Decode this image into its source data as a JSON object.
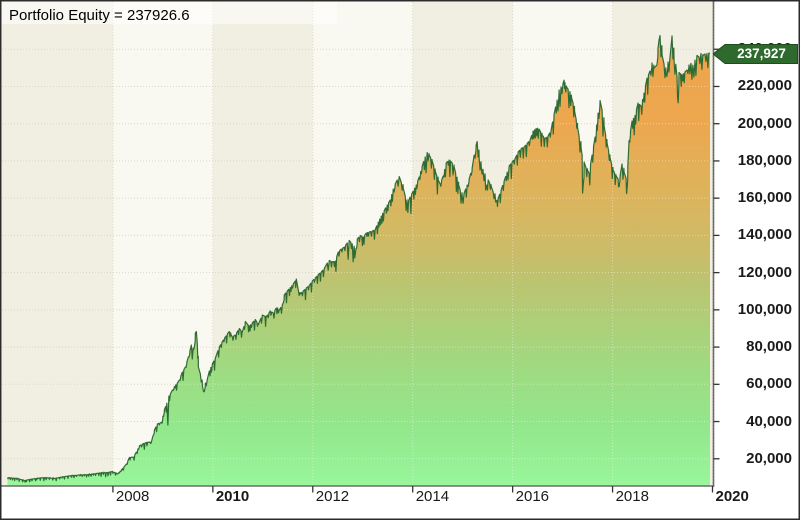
{
  "chart_data": {
    "type": "area",
    "title": "Portfolio Equity = 237926.6",
    "series_name": "Portfolio Equity",
    "last_value": 237926.6,
    "last_value_label": "237,927",
    "x_range": [
      2005.78,
      2020.02
    ],
    "y_range": [
      5372,
      265380
    ],
    "x_ticks": [
      {
        "label": "2008",
        "year": 2008,
        "bold": false
      },
      {
        "label": "2010",
        "year": 2010,
        "bold": true
      },
      {
        "label": "2012",
        "year": 2012,
        "bold": false
      },
      {
        "label": "2014",
        "year": 2014,
        "bold": false
      },
      {
        "label": "2016",
        "year": 2016,
        "bold": false
      },
      {
        "label": "2018",
        "year": 2018,
        "bold": false
      },
      {
        "label": "2020",
        "year": 2020,
        "bold": true
      }
    ],
    "y_ticks": [
      {
        "label": "20,000",
        "value": 20000
      },
      {
        "label": "40,000",
        "value": 40000
      },
      {
        "label": "60,000",
        "value": 60000
      },
      {
        "label": "80,000",
        "value": 80000
      },
      {
        "label": "100,000",
        "value": 100000
      },
      {
        "label": "120,000",
        "value": 120000
      },
      {
        "label": "140,000",
        "value": 140000
      },
      {
        "label": "160,000",
        "value": 160000
      },
      {
        "label": "180,000",
        "value": 180000
      },
      {
        "label": "200,000",
        "value": 200000
      },
      {
        "label": "220,000",
        "value": 220000
      },
      {
        "label": "240,000",
        "value": 240000
      }
    ],
    "grid": {
      "h_step": 20000,
      "v_step_years": 2,
      "style": "dotted"
    },
    "bands": {
      "interval_years": 2,
      "beige_spans": [
        [
          2005.78,
          2008
        ],
        [
          2010,
          2012
        ],
        [
          2014,
          2016
        ],
        [
          2018,
          2020.02
        ]
      ]
    },
    "colors": {
      "line": "#2f6b33",
      "band_beige": "#f0efe2",
      "band_white": "#faf9f1",
      "grid_bg": "#dbd8c7",
      "grid_overlay": "rgba(255,255,255,0.42)",
      "tag_bg": "#2e6a2e",
      "tag_text": "#ffffff",
      "plot_border": "#6b6b6b",
      "outer_border": "#2b2b2b",
      "axis_text": "#1a1a1a",
      "fill_stops": [
        [
          0,
          "#f0a54c"
        ],
        [
          0.25,
          "#eca74f"
        ],
        [
          0.35,
          "#e2b058"
        ],
        [
          0.44,
          "#d7b761"
        ],
        [
          0.52,
          "#cabc69"
        ],
        [
          0.58,
          "#bcc470"
        ],
        [
          0.68,
          "#abd17a"
        ],
        [
          0.78,
          "#9cdd83"
        ],
        [
          0.88,
          "#93e78c"
        ],
        [
          1,
          "#99f69b"
        ]
      ]
    },
    "points": [
      [
        2005.89,
        9900
      ],
      [
        2006.09,
        9400
      ],
      [
        2006.23,
        8300
      ],
      [
        2006.37,
        9100
      ],
      [
        2006.63,
        9900
      ],
      [
        2006.83,
        9400
      ],
      [
        2007.09,
        10700
      ],
      [
        2007.33,
        11300
      ],
      [
        2007.53,
        11500
      ],
      [
        2007.73,
        12350
      ],
      [
        2007.89,
        12600
      ],
      [
        2007.99,
        13150
      ],
      [
        2008.09,
        11800
      ],
      [
        2008.17,
        14000
      ],
      [
        2008.27,
        17200
      ],
      [
        2008.33,
        20700
      ],
      [
        2008.41,
        20900
      ],
      [
        2008.47,
        23600
      ],
      [
        2008.53,
        26900
      ],
      [
        2008.59,
        27900
      ],
      [
        2008.67,
        28750
      ],
      [
        2008.77,
        29000
      ],
      [
        2008.83,
        35450
      ],
      [
        2008.89,
        38700
      ],
      [
        2008.97,
        39500
      ],
      [
        2009.03,
        46200
      ],
      [
        2009.08,
        49900
      ],
      [
        2009.1,
        38100
      ],
      [
        2009.12,
        53700
      ],
      [
        2009.15,
        54800
      ],
      [
        2009.19,
        56900
      ],
      [
        2009.23,
        58800
      ],
      [
        2009.29,
        60700
      ],
      [
        2009.33,
        62300
      ],
      [
        2009.39,
        66600
      ],
      [
        2009.45,
        69300
      ],
      [
        2009.51,
        74700
      ],
      [
        2009.57,
        81100
      ],
      [
        2009.61,
        78400
      ],
      [
        2009.65,
        87550
      ],
      [
        2009.67,
        88350
      ],
      [
        2009.69,
        81100
      ],
      [
        2009.71,
        69300
      ],
      [
        2009.75,
        65500
      ],
      [
        2009.79,
        59600
      ],
      [
        2009.81,
        56400
      ],
      [
        2009.85,
        60700
      ],
      [
        2009.89,
        62850
      ],
      [
        2009.93,
        67150
      ],
      [
        2009.99,
        70900
      ],
      [
        2010.05,
        74100
      ],
      [
        2010.13,
        80000
      ],
      [
        2010.21,
        83800
      ],
      [
        2010.29,
        87000
      ],
      [
        2010.33,
        88350
      ],
      [
        2010.39,
        85400
      ],
      [
        2010.45,
        86500
      ],
      [
        2010.53,
        90000
      ],
      [
        2010.59,
        88100
      ],
      [
        2010.65,
        93750
      ],
      [
        2010.73,
        91050
      ],
      [
        2010.79,
        92900
      ],
      [
        2010.85,
        94800
      ],
      [
        2010.91,
        92100
      ],
      [
        2010.99,
        97200
      ],
      [
        2011.07,
        96150
      ],
      [
        2011.15,
        99400
      ],
      [
        2011.21,
        98300
      ],
      [
        2011.27,
        101000
      ],
      [
        2011.33,
        99900
      ],
      [
        2011.39,
        102600
      ],
      [
        2011.43,
        108000
      ],
      [
        2011.49,
        110100
      ],
      [
        2011.55,
        112000
      ],
      [
        2011.61,
        113900
      ],
      [
        2011.65,
        115500
      ],
      [
        2011.67,
        116550
      ],
      [
        2011.71,
        110650
      ],
      [
        2011.75,
        108500
      ],
      [
        2011.81,
        110100
      ],
      [
        2011.87,
        111700
      ],
      [
        2011.93,
        113050
      ],
      [
        2011.99,
        115500
      ],
      [
        2012.05,
        117100
      ],
      [
        2012.11,
        119000
      ],
      [
        2012.17,
        120300
      ],
      [
        2012.23,
        122200
      ],
      [
        2012.29,
        125150
      ],
      [
        2012.33,
        126500
      ],
      [
        2012.39,
        125700
      ],
      [
        2012.45,
        126200
      ],
      [
        2012.51,
        131050
      ],
      [
        2012.57,
        132650
      ],
      [
        2012.63,
        133700
      ],
      [
        2012.69,
        135900
      ],
      [
        2012.73,
        137250
      ],
      [
        2012.79,
        135350
      ],
      [
        2012.83,
        133750
      ],
      [
        2012.84,
        127850
      ],
      [
        2012.89,
        138050
      ],
      [
        2012.95,
        139900
      ],
      [
        2013.01,
        139100
      ],
      [
        2013.07,
        141250
      ],
      [
        2013.13,
        141800
      ],
      [
        2013.19,
        142300
      ],
      [
        2013.25,
        143100
      ],
      [
        2013.31,
        147150
      ],
      [
        2013.37,
        150350
      ],
      [
        2013.43,
        153300
      ],
      [
        2013.49,
        156300
      ],
      [
        2013.55,
        159000
      ],
      [
        2013.61,
        164900
      ],
      [
        2013.65,
        167600
      ],
      [
        2013.69,
        169750
      ],
      [
        2013.73,
        171600
      ],
      [
        2013.77,
        168650
      ],
      [
        2013.81,
        165450
      ],
      [
        2013.85,
        161150
      ],
      [
        2013.89,
        157100
      ],
      [
        2013.95,
        160600
      ],
      [
        2014.01,
        163800
      ],
      [
        2014.07,
        167050
      ],
      [
        2014.13,
        171350
      ],
      [
        2014.19,
        177250
      ],
      [
        2014.25,
        182100
      ],
      [
        2014.29,
        184500
      ],
      [
        2014.33,
        183150
      ],
      [
        2014.39,
        179950
      ],
      [
        2014.45,
        174550
      ],
      [
        2014.51,
        169750
      ],
      [
        2014.55,
        167600
      ],
      [
        2014.61,
        171900
      ],
      [
        2014.67,
        178900
      ],
      [
        2014.73,
        180500
      ],
      [
        2014.79,
        178900
      ],
      [
        2014.83,
        176750
      ],
      [
        2014.89,
        169750
      ],
      [
        2014.95,
        164350
      ],
      [
        2014.99,
        160900
      ],
      [
        2015.03,
        162750
      ],
      [
        2015.09,
        167050
      ],
      [
        2015.13,
        170300
      ],
      [
        2015.19,
        176200
      ],
      [
        2015.23,
        183150
      ],
      [
        2015.27,
        188550
      ],
      [
        2015.29,
        190400
      ],
      [
        2015.33,
        181550
      ],
      [
        2015.37,
        177250
      ],
      [
        2015.41,
        174000
      ],
      [
        2015.45,
        171600
      ],
      [
        2015.46,
        164350
      ],
      [
        2015.51,
        169750
      ],
      [
        2015.57,
        166500
      ],
      [
        2015.61,
        163300
      ],
      [
        2015.65,
        161150
      ],
      [
        2015.66,
        157900
      ],
      [
        2015.71,
        159800
      ],
      [
        2015.77,
        164350
      ],
      [
        2015.83,
        169200
      ],
      [
        2015.89,
        174000
      ],
      [
        2015.93,
        177250
      ],
      [
        2015.99,
        179400
      ],
      [
        2016.05,
        181300
      ],
      [
        2016.11,
        184800
      ],
      [
        2016.17,
        186650
      ],
      [
        2016.23,
        187500
      ],
      [
        2016.29,
        189350
      ],
      [
        2016.35,
        191250
      ],
      [
        2016.41,
        196050
      ],
      [
        2016.47,
        197400
      ],
      [
        2016.53,
        197100
      ],
      [
        2016.59,
        193900
      ],
      [
        2016.65,
        192000
      ],
      [
        2016.71,
        193350
      ],
      [
        2016.77,
        196600
      ],
      [
        2016.83,
        205200
      ],
      [
        2016.89,
        212700
      ],
      [
        2016.93,
        218100
      ],
      [
        2016.97,
        219700
      ],
      [
        2017.01,
        221850
      ],
      [
        2017.03,
        223400
      ],
      [
        2017.05,
        220750
      ],
      [
        2017.11,
        218600
      ],
      [
        2017.15,
        216450
      ],
      [
        2017.21,
        211100
      ],
      [
        2017.27,
        202500
      ],
      [
        2017.33,
        193350
      ],
      [
        2017.37,
        186900
      ],
      [
        2017.39,
        183150
      ],
      [
        2017.4,
        162750
      ],
      [
        2017.43,
        179400
      ],
      [
        2017.47,
        176200
      ],
      [
        2017.53,
        173450
      ],
      [
        2017.59,
        183150
      ],
      [
        2017.65,
        192800
      ],
      [
        2017.71,
        205700
      ],
      [
        2017.75,
        212400
      ],
      [
        2017.79,
        207300
      ],
      [
        2017.83,
        198700
      ],
      [
        2017.89,
        189600
      ],
      [
        2017.95,
        181550
      ],
      [
        2018.01,
        175100
      ],
      [
        2018.07,
        171900
      ],
      [
        2018.11,
        170300
      ],
      [
        2018.12,
        166000
      ],
      [
        2018.15,
        171900
      ],
      [
        2018.19,
        178350
      ],
      [
        2018.23,
        174000
      ],
      [
        2018.27,
        170800
      ],
      [
        2018.28,
        162500
      ],
      [
        2018.33,
        190900
      ],
      [
        2018.39,
        201400
      ],
      [
        2018.45,
        204400
      ],
      [
        2018.51,
        211100
      ],
      [
        2018.57,
        209500
      ],
      [
        2018.63,
        216450
      ],
      [
        2018.69,
        224500
      ],
      [
        2018.75,
        228300
      ],
      [
        2018.79,
        232600
      ],
      [
        2018.83,
        229900
      ],
      [
        2018.87,
        231000
      ],
      [
        2018.91,
        240650
      ],
      [
        2018.93,
        244950
      ],
      [
        2018.95,
        247350
      ],
      [
        2018.99,
        236900
      ],
      [
        2019.03,
        232050
      ],
      [
        2019.07,
        227200
      ],
      [
        2019.11,
        233150
      ],
      [
        2019.15,
        235850
      ],
      [
        2019.19,
        247100
      ],
      [
        2019.23,
        234250
      ],
      [
        2019.27,
        230200
      ],
      [
        2019.29,
        225100
      ],
      [
        2019.3,
        214350
      ],
      [
        2019.33,
        227500
      ],
      [
        2019.39,
        225900
      ],
      [
        2019.45,
        227800
      ],
      [
        2019.49,
        228850
      ],
      [
        2019.53,
        231550
      ],
      [
        2019.57,
        232350
      ],
      [
        2019.61,
        230450
      ],
      [
        2019.65,
        234200
      ],
      [
        2019.69,
        236650
      ],
      [
        2019.73,
        235850
      ],
      [
        2019.77,
        237700
      ],
      [
        2019.81,
        236650
      ],
      [
        2019.85,
        237450
      ],
      [
        2019.89,
        237700
      ],
      [
        2019.93,
        237900
      ],
      [
        2019.95,
        237927
      ]
    ]
  }
}
